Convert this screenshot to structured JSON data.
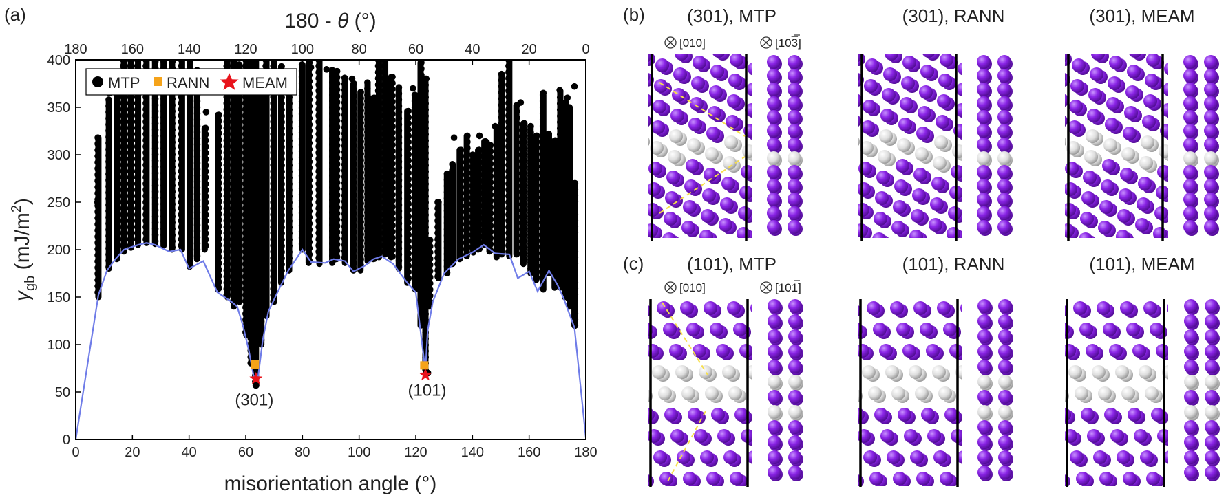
{
  "figure": {
    "panel_a_label": "(a)",
    "panel_b_label": "(b)",
    "panel_c_label": "(c)"
  },
  "chart_data": {
    "type": "scatter",
    "xlabel": "misorientation angle (°)",
    "ylabel_main": "γ",
    "ylabel_sub": "gb",
    "ylabel_units": " (mJ/m",
    "ylabel_sup": "2",
    "ylabel_close": ")",
    "top_axis_label_prefix": "180 - ",
    "top_axis_label_theta": "θ",
    "top_axis_label_suffix": " (°)",
    "xlim": [
      0,
      180
    ],
    "ylim": [
      0,
      400
    ],
    "xticks": [
      0,
      20,
      40,
      60,
      80,
      100,
      120,
      140,
      160,
      180
    ],
    "yticks": [
      0,
      50,
      100,
      150,
      200,
      250,
      300,
      350,
      400
    ],
    "top_ticks": [
      180,
      160,
      140,
      120,
      100,
      80,
      60,
      40,
      20,
      0
    ],
    "legend": {
      "mtp": "MTP",
      "rann": "RANN",
      "meam": "MEAM",
      "placement": "top-left"
    },
    "colors": {
      "mtp": "#000000",
      "rann": "#f5a31a",
      "meam": "#e8131b",
      "min_line": "#6f7ce8"
    },
    "mtp_columns": [
      [
        8.0,
        150,
        318
      ],
      [
        11.7,
        180,
        358
      ],
      [
        14.5,
        190,
        380
      ],
      [
        17.0,
        198,
        400
      ],
      [
        19.5,
        202,
        400
      ],
      [
        22.0,
        205,
        400
      ],
      [
        25.0,
        207,
        400
      ],
      [
        28.0,
        206,
        398
      ],
      [
        31.0,
        204,
        398
      ],
      [
        34.0,
        200,
        398
      ],
      [
        37.5,
        200,
        400
      ],
      [
        40.2,
        182,
        398
      ],
      [
        42.8,
        190,
        389
      ],
      [
        45.5,
        200,
        328
      ],
      [
        50.2,
        158,
        342
      ],
      [
        53.5,
        150,
        400
      ],
      [
        55.8,
        140,
        400
      ],
      [
        57.8,
        145,
        395
      ],
      [
        60.2,
        110,
        400
      ],
      [
        62.0,
        80,
        400
      ],
      [
        63.6,
        58,
        400
      ],
      [
        65.5,
        100,
        385
      ],
      [
        67.3,
        130,
        400
      ],
      [
        70.0,
        145,
        400
      ],
      [
        72.5,
        165,
        393
      ],
      [
        75.3,
        178,
        380
      ],
      [
        80.0,
        200,
        395
      ],
      [
        82.2,
        186,
        397
      ],
      [
        86.0,
        185,
        400
      ],
      [
        90.5,
        186,
        389
      ],
      [
        92.0,
        190,
        388
      ],
      [
        95.0,
        186,
        381
      ],
      [
        98.0,
        178,
        375
      ],
      [
        100.5,
        178,
        366
      ],
      [
        103.0,
        188,
        376
      ],
      [
        105.0,
        190,
        360
      ],
      [
        107.0,
        192,
        400
      ],
      [
        109.2,
        195,
        400
      ],
      [
        111.3,
        192,
        382
      ],
      [
        114.0,
        180,
        371
      ],
      [
        117.0,
        165,
        346
      ],
      [
        119.8,
        158,
        363
      ],
      [
        121.7,
        120,
        397
      ],
      [
        123.4,
        73,
        380
      ],
      [
        124.7,
        140,
        210
      ],
      [
        128.0,
        170,
        250
      ],
      [
        131.0,
        175,
        280
      ],
      [
        133.0,
        185,
        290
      ],
      [
        135.5,
        190,
        305
      ],
      [
        138.0,
        193,
        320
      ],
      [
        140.3,
        197,
        300
      ],
      [
        142.0,
        200,
        305
      ],
      [
        144.2,
        205,
        314
      ],
      [
        146.0,
        198,
        310
      ],
      [
        148.5,
        192,
        328
      ],
      [
        150.3,
        195,
        385
      ],
      [
        153.0,
        193,
        400
      ],
      [
        155.5,
        195,
        352
      ],
      [
        158.0,
        185,
        333
      ],
      [
        160.5,
        175,
        330
      ],
      [
        162.5,
        168,
        320
      ],
      [
        165.0,
        158,
        363
      ],
      [
        167.0,
        175,
        322
      ],
      [
        169.0,
        160,
        315
      ],
      [
        171.0,
        160,
        367
      ],
      [
        172.6,
        150,
        355
      ],
      [
        174.3,
        140,
        350
      ],
      [
        176.0,
        120,
        270
      ]
    ],
    "outliers": [
      [
        7.7,
        250
      ],
      [
        12.0,
        365
      ],
      [
        46.0,
        345
      ],
      [
        64.5,
        365
      ],
      [
        83.0,
        392
      ],
      [
        88.5,
        390
      ],
      [
        97.5,
        380
      ],
      [
        119.0,
        370
      ],
      [
        123.7,
        380
      ],
      [
        124.3,
        70
      ],
      [
        128.0,
        250
      ],
      [
        133.5,
        318
      ],
      [
        142.5,
        320
      ],
      [
        145.0,
        313
      ],
      [
        148.0,
        330
      ],
      [
        170.8,
        368
      ],
      [
        173.5,
        360
      ],
      [
        176.0,
        372
      ],
      [
        157.0,
        355
      ],
      [
        165.0,
        365
      ]
    ],
    "min_envelope": [
      [
        0,
        0
      ],
      [
        8,
        152
      ],
      [
        11,
        178
      ],
      [
        14,
        190
      ],
      [
        17,
        200
      ],
      [
        22,
        205
      ],
      [
        25,
        207
      ],
      [
        28,
        205
      ],
      [
        33,
        198
      ],
      [
        37,
        200
      ],
      [
        40,
        180
      ],
      [
        45,
        188
      ],
      [
        50,
        155
      ],
      [
        55,
        145
      ],
      [
        57,
        140
      ],
      [
        59,
        120
      ],
      [
        61,
        95
      ],
      [
        63.2,
        60
      ],
      [
        64,
        58
      ],
      [
        66,
        105
      ],
      [
        68,
        135
      ],
      [
        72,
        160
      ],
      [
        75,
        178
      ],
      [
        80,
        200
      ],
      [
        83,
        187
      ],
      [
        88,
        186
      ],
      [
        91,
        190
      ],
      [
        95,
        188
      ],
      [
        98,
        177
      ],
      [
        102,
        183
      ],
      [
        105,
        190
      ],
      [
        108,
        193
      ],
      [
        112,
        185
      ],
      [
        117,
        165
      ],
      [
        120,
        155
      ],
      [
        123.4,
        72
      ],
      [
        124.2,
        115
      ],
      [
        126,
        145
      ],
      [
        130,
        175
      ],
      [
        135,
        190
      ],
      [
        140,
        197
      ],
      [
        144,
        205
      ],
      [
        148,
        196
      ],
      [
        153,
        195
      ],
      [
        156,
        170
      ],
      [
        160,
        177
      ],
      [
        163,
        156
      ],
      [
        167,
        178
      ],
      [
        170,
        163
      ],
      [
        172,
        150
      ],
      [
        176,
        118
      ],
      [
        180,
        2
      ]
    ],
    "rann_points": [
      [
        63.2,
        79
      ],
      [
        123.0,
        78
      ]
    ],
    "meam_points": [
      [
        63.6,
        64
      ],
      [
        123.4,
        68
      ]
    ],
    "mtp_minima": [
      [
        63.6,
        57
      ],
      [
        123.7,
        71
      ]
    ],
    "annotations": [
      {
        "x": 63.0,
        "y": 36,
        "text": "(301)"
      },
      {
        "x": 124.0,
        "y": 46,
        "text": "(101)"
      }
    ]
  },
  "structures": {
    "row_b": {
      "titles": [
        "(301), MTP",
        "(301), RANN",
        "(301), MEAM"
      ],
      "axis_labels": [
        "[010]",
        "[10",
        "3",
        "]"
      ]
    },
    "row_c": {
      "titles": [
        "(101), MTP",
        "(101), RANN",
        "(101), MEAM"
      ],
      "axis_labels": [
        "[010]",
        "[10",
        "1",
        "]"
      ]
    }
  }
}
